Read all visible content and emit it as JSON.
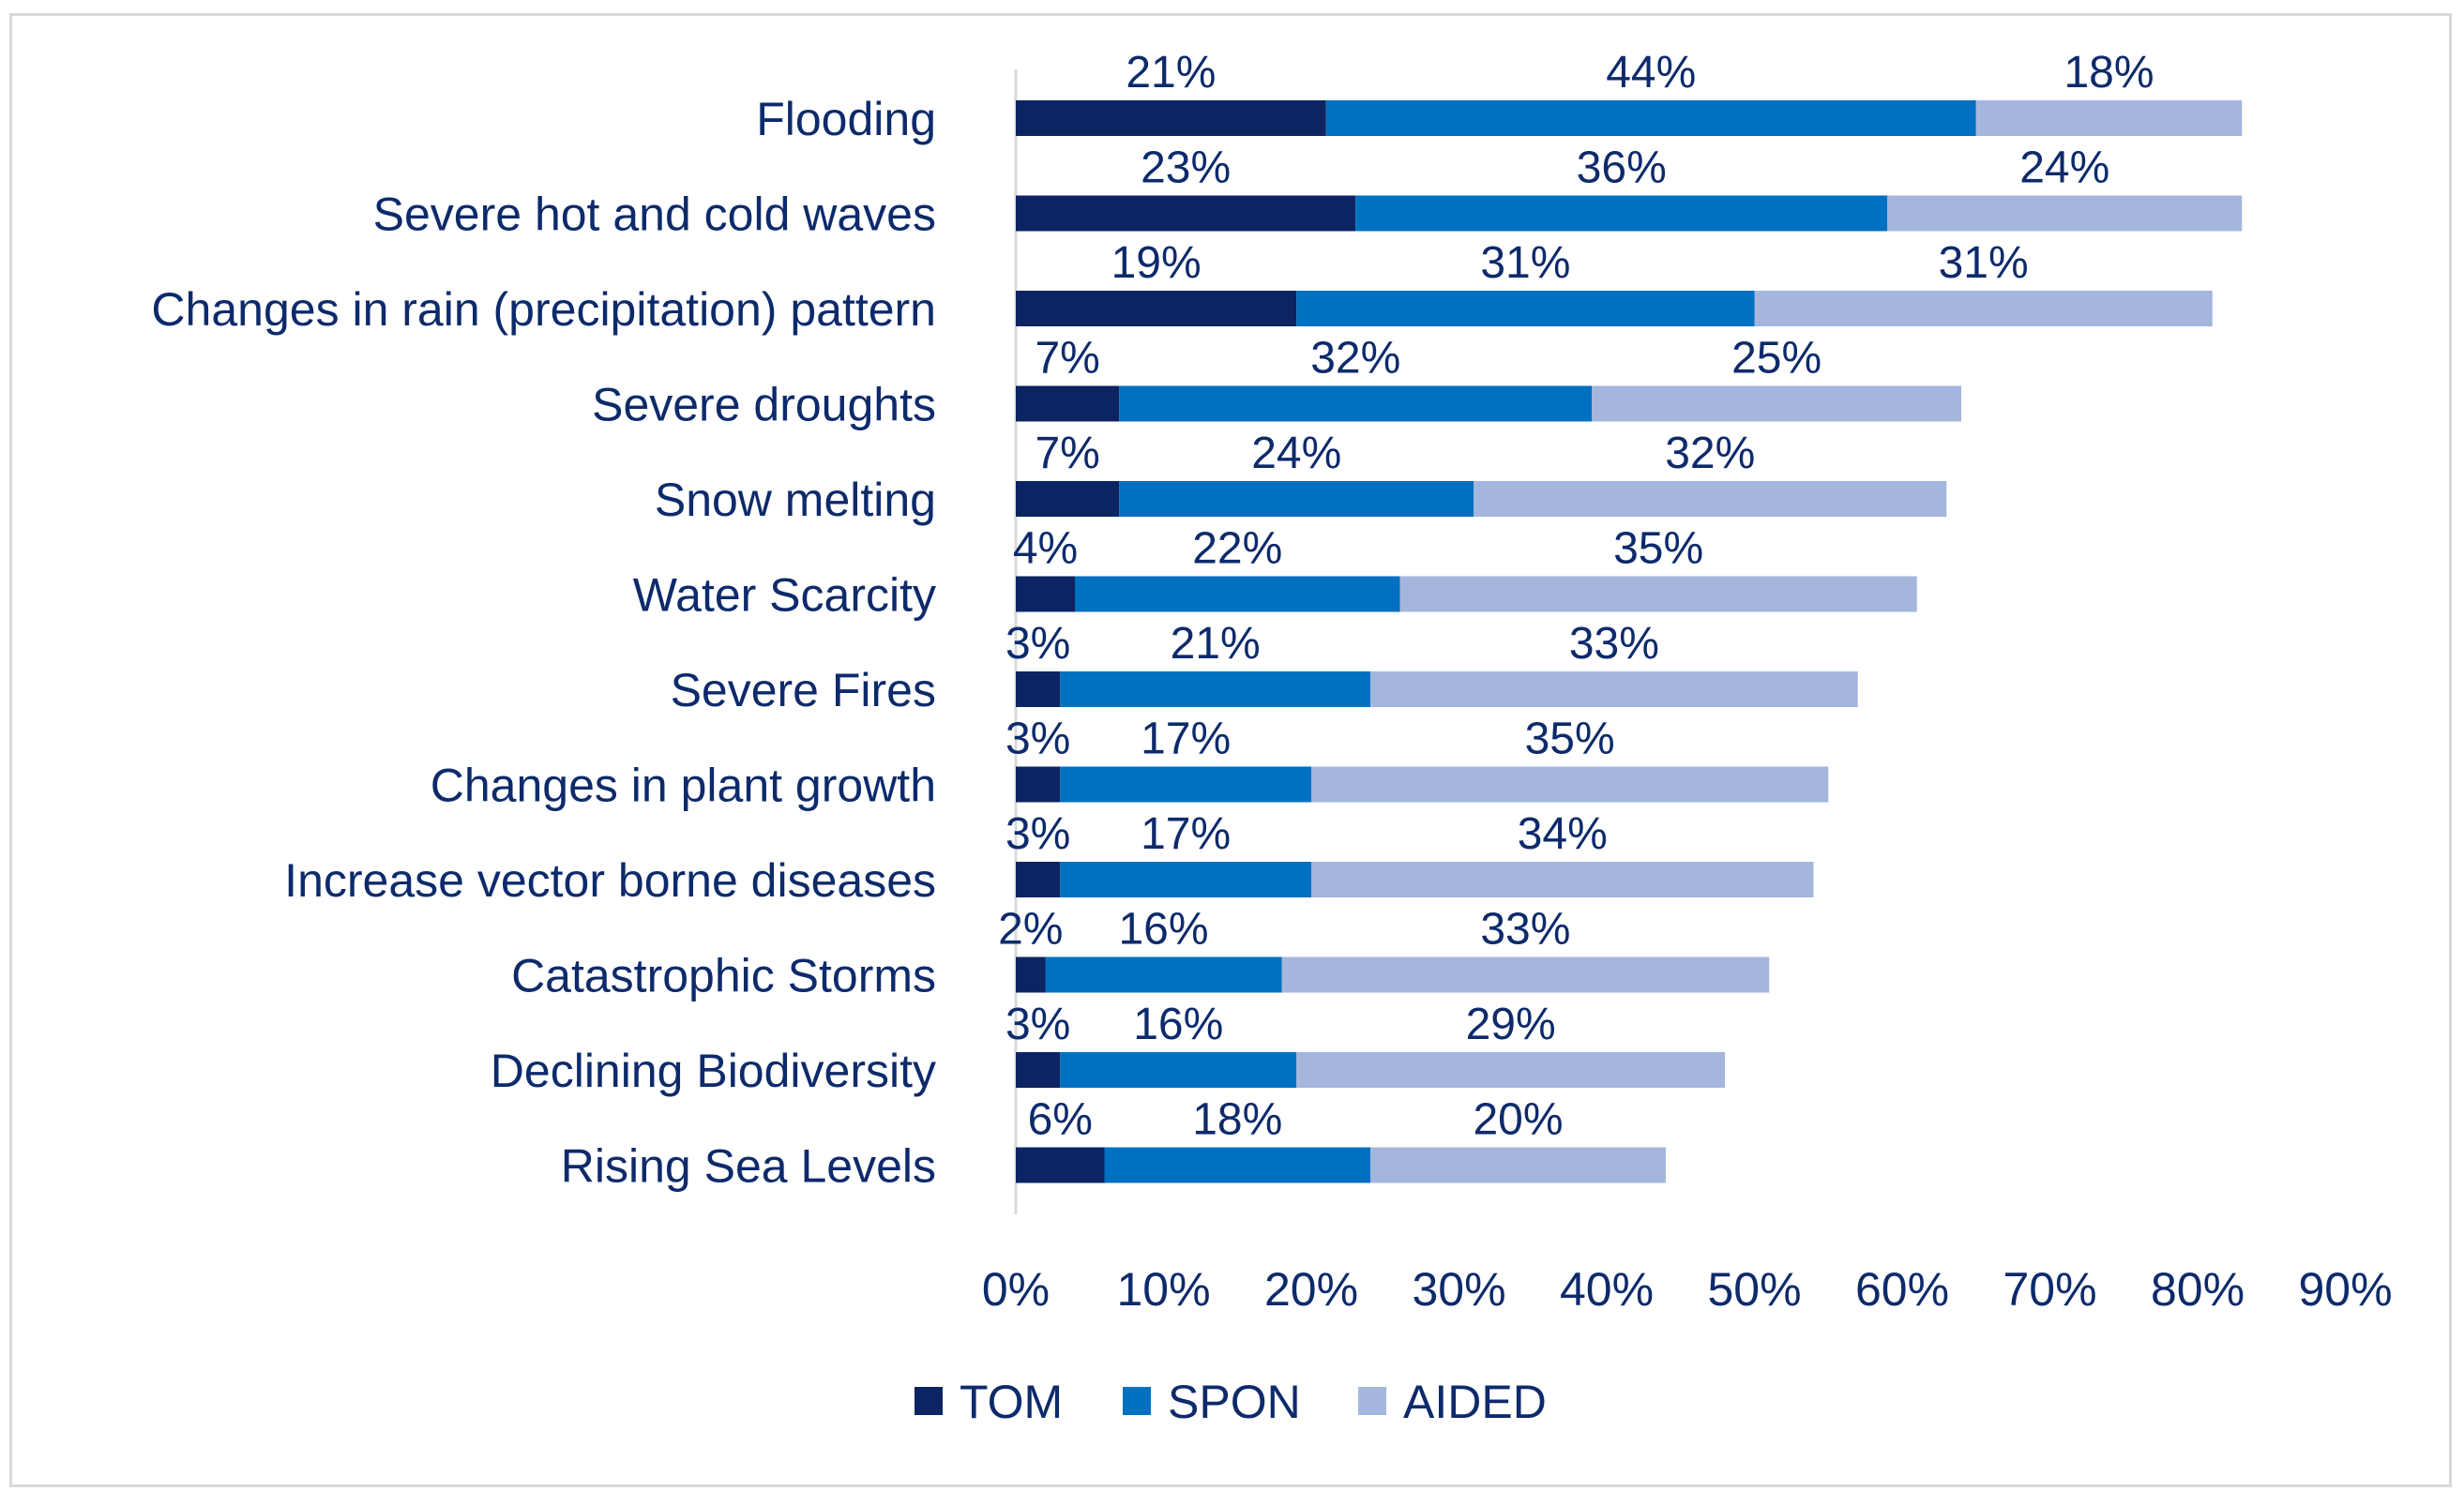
{
  "chart_data": {
    "type": "bar",
    "orientation": "horizontal",
    "stacked": true,
    "title": "",
    "xlabel": "",
    "ylabel": "",
    "xlim": [
      0,
      90
    ],
    "x_ticks": [
      "0%",
      "10%",
      "20%",
      "30%",
      "40%",
      "50%",
      "60%",
      "70%",
      "80%",
      "90%"
    ],
    "grid": false,
    "legend_position": "bottom",
    "categories": [
      "Flooding",
      "Severe hot and cold waves",
      "Changes in rain (precipitation) pattern",
      "Severe droughts",
      "Snow melting",
      "Water Scarcity",
      "Severe Fires",
      "Changes in plant growth",
      "Increase vector borne diseases",
      "Catastrophic Storms",
      "Declining Biodiversity",
      "Rising Sea Levels"
    ],
    "series": [
      {
        "name": "TOM",
        "color": "#0c2461",
        "values": [
          21,
          23,
          19,
          7,
          7,
          4,
          3,
          3,
          3,
          2,
          3,
          6
        ],
        "labels": [
          "21%",
          "23%",
          "19%",
          "7%",
          "7%",
          "4%",
          "3%",
          "3%",
          "3%",
          "2%",
          "3%",
          "6%"
        ]
      },
      {
        "name": "SPON",
        "color": "#0070c0",
        "values": [
          44,
          36,
          31,
          32,
          24,
          22,
          21,
          17,
          17,
          16,
          16,
          18
        ],
        "labels": [
          "44%",
          "36%",
          "31%",
          "32%",
          "24%",
          "22%",
          "21%",
          "17%",
          "17%",
          "16%",
          "16%",
          "18%"
        ]
      },
      {
        "name": "AIDED",
        "color": "#a5b6dd",
        "values": [
          18,
          24,
          31,
          25,
          32,
          35,
          33,
          35,
          34,
          33,
          29,
          20
        ],
        "labels": [
          "18%",
          "24%",
          "31%",
          "25%",
          "32%",
          "35%",
          "33%",
          "35%",
          "34%",
          "33%",
          "29%",
          "20%"
        ]
      }
    ]
  }
}
